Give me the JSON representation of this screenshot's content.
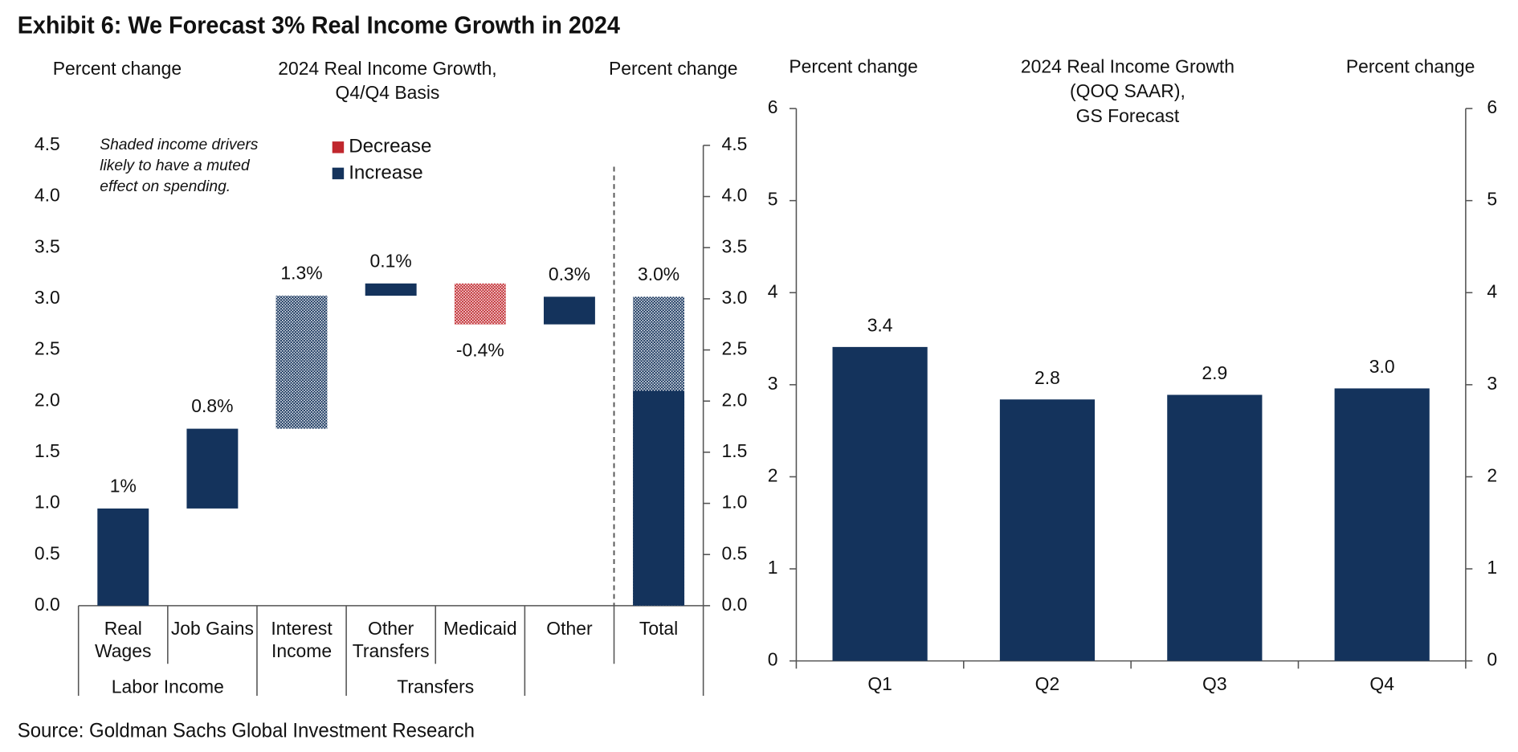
{
  "title": "Exhibit 6: We Forecast 3% Real Income Growth in 2024",
  "source": "Source: Goldman Sachs Global Investment Research",
  "chart_data": [
    {
      "type": "waterfall",
      "title": [
        "2024 Real Income Growth,",
        "Q4/Q4 Basis"
      ],
      "y_label_left": "Percent change",
      "y_label_right": "Percent change",
      "annotation": [
        "Shaded income drivers",
        "likely to have a muted",
        "effect on spending."
      ],
      "categories": [
        [
          "Real",
          "Wages"
        ],
        [
          "Job Gains"
        ],
        [
          "Interest",
          "Income"
        ],
        [
          "Other",
          "Transfers"
        ],
        [
          "Medicaid"
        ],
        [
          "Other"
        ],
        [
          "Total"
        ]
      ],
      "values": [
        0.95,
        0.78,
        1.3,
        0.12,
        -0.4,
        0.27,
        3.02
      ],
      "value_labels": [
        "1%",
        "0.8%",
        "1.3%",
        "0.1%",
        "-0.4%",
        "0.3%",
        "3.0%"
      ],
      "shaded": [
        false,
        false,
        true,
        false,
        true,
        false,
        true
      ],
      "total_unshaded": 2.1,
      "groups": [
        {
          "label": "Labor Income",
          "start": 0,
          "end": 1
        },
        {
          "label": "Transfers",
          "start": 3,
          "end": 4
        }
      ],
      "legend": [
        {
          "name": "Decrease",
          "color": "#c0272d"
        },
        {
          "name": "Increase",
          "color": "#14335c"
        }
      ],
      "ylim": [
        0,
        4.5
      ],
      "yticks": [
        {
          "value": 0,
          "label": "0.0"
        },
        {
          "value": 0.5,
          "label": "0.5"
        },
        {
          "value": 1,
          "label": "1.0"
        },
        {
          "value": 1.5,
          "label": "1.5"
        },
        {
          "value": 2,
          "label": "2.0"
        },
        {
          "value": 2.5,
          "label": "2.5"
        },
        {
          "value": 3,
          "label": "3.0"
        },
        {
          "value": 3.5,
          "label": "3.5"
        },
        {
          "value": 4,
          "label": "4.0"
        },
        {
          "value": 4.5,
          "label": "4.5"
        }
      ]
    },
    {
      "type": "bar",
      "title": [
        "2024 Real Income Growth",
        "(QOQ SAAR),",
        "GS Forecast"
      ],
      "y_label_left": "Percent change",
      "y_label_right": "Percent change",
      "categories": [
        "Q1",
        "Q2",
        "Q3",
        "Q4"
      ],
      "values": [
        3.41,
        2.84,
        2.89,
        2.96
      ],
      "value_labels": [
        "3.4",
        "2.8",
        "2.9",
        "3.0"
      ],
      "color": "#14335c",
      "ylim": [
        0,
        6
      ],
      "yticks": [
        0,
        1,
        2,
        3,
        4,
        5,
        6
      ]
    }
  ]
}
